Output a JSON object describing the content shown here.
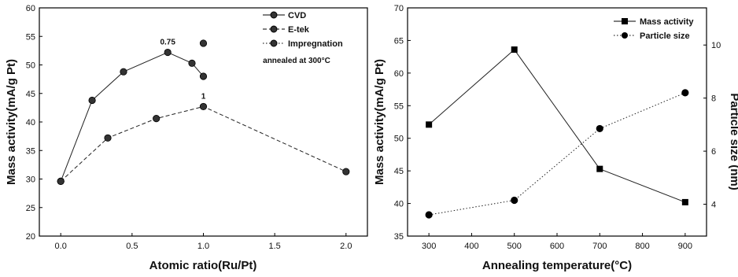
{
  "chart_data": [
    {
      "type": "line",
      "xlabel": "Atomic ratio(Ru/Pt)",
      "ylabel": "Mass activity(mA/g Pt)",
      "xlim": [
        -0.15,
        2.15
      ],
      "ylim": [
        20,
        60
      ],
      "xticks": [
        0.0,
        0.5,
        1.0,
        1.5,
        2.0
      ],
      "xtick_labels": [
        "0.0",
        "0.5",
        "1.0",
        "1.5",
        "2.0"
      ],
      "yticks": [
        20,
        25,
        30,
        35,
        40,
        45,
        50,
        55,
        60
      ],
      "legend_position": "top-right",
      "annotation": "annealed at 300°C",
      "series": [
        {
          "name": "CVD",
          "style": "solid",
          "x": [
            0.0,
            0.22,
            0.44,
            0.75,
            0.92,
            1.0
          ],
          "y": [
            29.6,
            43.8,
            48.8,
            52.2,
            50.3,
            48.0
          ],
          "labels": [
            "",
            "",
            "",
            "0.75",
            "",
            ""
          ]
        },
        {
          "name": "E-tek",
          "style": "dashed",
          "x": [
            0.0,
            0.33,
            0.67,
            1.0,
            2.0
          ],
          "y": [
            29.6,
            37.2,
            40.6,
            42.7,
            31.3
          ],
          "labels": [
            "",
            "",
            "",
            "1",
            ""
          ]
        },
        {
          "name": "Impregnation",
          "style": "dotted",
          "x": [
            1.0
          ],
          "y": [
            53.8
          ],
          "labels": [
            ""
          ]
        }
      ]
    },
    {
      "type": "line",
      "xlabel": "Annealing temperature(°C)",
      "ylabel": "Mass activity(mA/g Pt)",
      "y2label": "Particle size (nm)",
      "xlim": [
        250,
        950
      ],
      "ylim": [
        35,
        70
      ],
      "y2lim": [
        2.8,
        11.4
      ],
      "xticks": [
        300,
        400,
        500,
        600,
        700,
        800,
        900
      ],
      "yticks": [
        35,
        40,
        45,
        50,
        55,
        60,
        65,
        70
      ],
      "y2ticks": [
        4,
        6,
        8,
        10
      ],
      "legend_position": "top-right",
      "series": [
        {
          "name": "Mass activity",
          "axis": "left",
          "style": "solid",
          "marker": "square",
          "x": [
            300,
            500,
            700,
            900
          ],
          "y": [
            52.1,
            63.6,
            45.3,
            40.2
          ]
        },
        {
          "name": "Particle size",
          "axis": "right",
          "style": "dotted",
          "marker": "circle",
          "x": [
            300,
            500,
            700,
            900
          ],
          "y": [
            3.6,
            4.15,
            6.85,
            8.2
          ]
        }
      ]
    }
  ]
}
